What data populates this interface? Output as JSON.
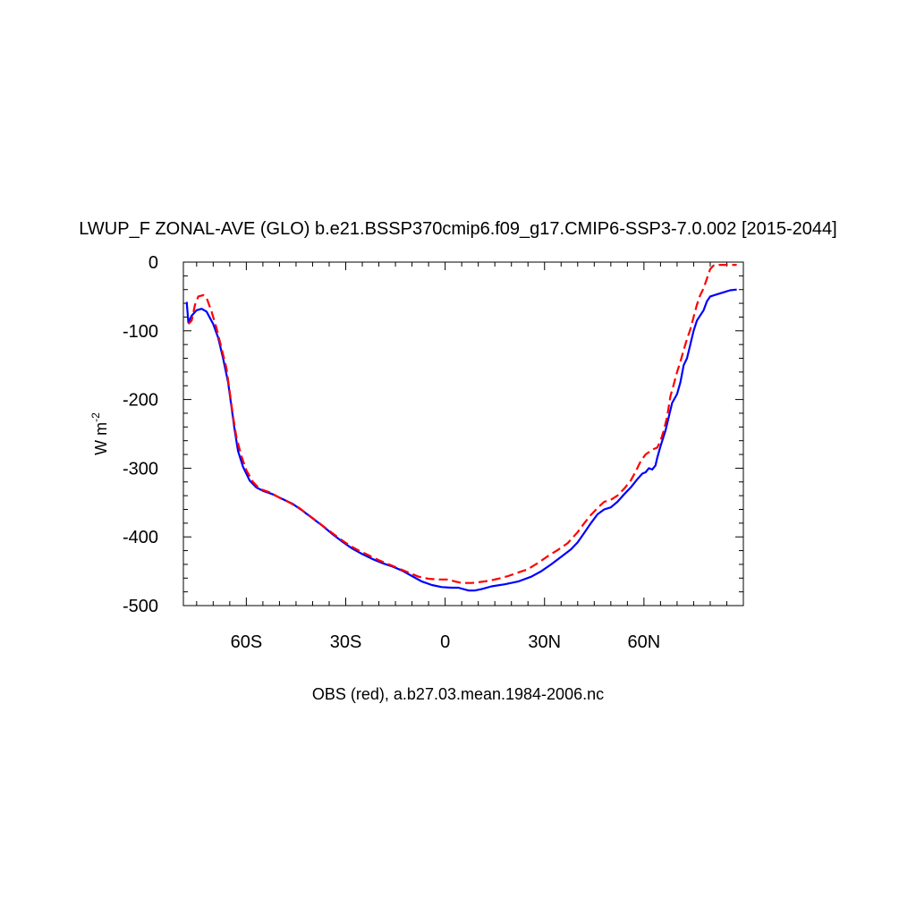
{
  "chart_data": {
    "type": "line",
    "title": "LWUP_F ZONAL-AVE (GLO) b.e21.BSSP370cmip6.f09_g17.CMIP6-SSP3-7.0.002 [2015-2044]",
    "ylabel_base": "W m",
    "ylabel_exp": "-2",
    "footer": "OBS (red), a.b27.03.mean.1984-2006.nc",
    "xlim": [
      -79,
      90
    ],
    "ylim": [
      -500,
      0
    ],
    "x_ticks": [
      {
        "value": -60,
        "label": "60S"
      },
      {
        "value": -30,
        "label": "30S"
      },
      {
        "value": 0,
        "label": "0"
      },
      {
        "value": 30,
        "label": "30N"
      },
      {
        "value": 60,
        "label": "60N"
      }
    ],
    "y_ticks": [
      {
        "value": 0,
        "label": "0"
      },
      {
        "value": -100,
        "label": "-100"
      },
      {
        "value": -200,
        "label": "-200"
      },
      {
        "value": -300,
        "label": "-300"
      },
      {
        "value": -400,
        "label": "-400"
      },
      {
        "value": -500,
        "label": "-500"
      }
    ],
    "series": [
      {
        "color": "#0000ff",
        "dash": "solid",
        "points": [
          [
            -78,
            -58
          ],
          [
            -77.5,
            -88
          ],
          [
            -76.5,
            -78
          ],
          [
            -75,
            -70
          ],
          [
            -73.5,
            -68
          ],
          [
            -72,
            -72
          ],
          [
            -70,
            -90
          ],
          [
            -68.5,
            -110
          ],
          [
            -67,
            -140
          ],
          [
            -65.5,
            -175
          ],
          [
            -64.5,
            -210
          ],
          [
            -63.5,
            -245
          ],
          [
            -62.5,
            -275
          ],
          [
            -61,
            -298
          ],
          [
            -59,
            -318
          ],
          [
            -57,
            -328
          ],
          [
            -55,
            -333
          ],
          [
            -52,
            -338
          ],
          [
            -49,
            -345
          ],
          [
            -46,
            -352
          ],
          [
            -43,
            -362
          ],
          [
            -40,
            -373
          ],
          [
            -37,
            -384
          ],
          [
            -34,
            -396
          ],
          [
            -31,
            -407
          ],
          [
            -28,
            -417
          ],
          [
            -25,
            -425
          ],
          [
            -22,
            -432
          ],
          [
            -19,
            -438
          ],
          [
            -16,
            -443
          ],
          [
            -13,
            -449
          ],
          [
            -10,
            -457
          ],
          [
            -7,
            -465
          ],
          [
            -4,
            -470
          ],
          [
            -1,
            -473
          ],
          [
            2,
            -474
          ],
          [
            4,
            -474
          ],
          [
            7,
            -478
          ],
          [
            9,
            -478
          ],
          [
            11,
            -476
          ],
          [
            14,
            -472
          ],
          [
            18,
            -469
          ],
          [
            22,
            -465
          ],
          [
            26,
            -458
          ],
          [
            29,
            -450
          ],
          [
            32,
            -440
          ],
          [
            35,
            -429
          ],
          [
            38,
            -418
          ],
          [
            40,
            -408
          ],
          [
            42,
            -394
          ],
          [
            44,
            -380
          ],
          [
            46,
            -367
          ],
          [
            48,
            -360
          ],
          [
            50,
            -357
          ],
          [
            52,
            -349
          ],
          [
            54,
            -338
          ],
          [
            56,
            -328
          ],
          [
            58,
            -316
          ],
          [
            59.5,
            -308
          ],
          [
            60.5,
            -306
          ],
          [
            61.5,
            -300
          ],
          [
            62.5,
            -302
          ],
          [
            63.5,
            -296
          ],
          [
            64,
            -285
          ],
          [
            65,
            -268
          ],
          [
            66.5,
            -245
          ],
          [
            67.5,
            -225
          ],
          [
            68.5,
            -205
          ],
          [
            70,
            -192
          ],
          [
            71,
            -175
          ],
          [
            72,
            -150
          ],
          [
            73,
            -140
          ],
          [
            74,
            -120
          ],
          [
            75,
            -100
          ],
          [
            76,
            -85
          ],
          [
            78,
            -70
          ],
          [
            79,
            -57
          ],
          [
            80,
            -50
          ],
          [
            82,
            -47
          ],
          [
            84,
            -44
          ],
          [
            86,
            -41
          ],
          [
            88,
            -40
          ]
        ]
      },
      {
        "color": "#ff0000",
        "dash": "dashed",
        "points": [
          [
            -77.5,
            -90
          ],
          [
            -76.5,
            -85
          ],
          [
            -75.5,
            -62
          ],
          [
            -74.5,
            -50
          ],
          [
            -73,
            -48
          ],
          [
            -72,
            -52
          ],
          [
            -70.5,
            -72
          ],
          [
            -69,
            -96
          ],
          [
            -67.5,
            -125
          ],
          [
            -66,
            -155
          ],
          [
            -65,
            -190
          ],
          [
            -64,
            -225
          ],
          [
            -63,
            -255
          ],
          [
            -61.5,
            -282
          ],
          [
            -60,
            -303
          ],
          [
            -58,
            -320
          ],
          [
            -56,
            -330
          ],
          [
            -53,
            -335
          ],
          [
            -50,
            -343
          ],
          [
            -47,
            -350
          ],
          [
            -44,
            -358
          ],
          [
            -41,
            -369
          ],
          [
            -38,
            -380
          ],
          [
            -35,
            -391
          ],
          [
            -32,
            -402
          ],
          [
            -29,
            -412
          ],
          [
            -26,
            -420
          ],
          [
            -23,
            -427
          ],
          [
            -20,
            -434
          ],
          [
            -17,
            -440
          ],
          [
            -14,
            -446
          ],
          [
            -11,
            -452
          ],
          [
            -8,
            -458
          ],
          [
            -5,
            -461
          ],
          [
            -2,
            -462
          ],
          [
            1,
            -462
          ],
          [
            3,
            -465
          ],
          [
            5,
            -467
          ],
          [
            8,
            -467
          ],
          [
            10,
            -466
          ],
          [
            13,
            -464
          ],
          [
            16,
            -461
          ],
          [
            19,
            -457
          ],
          [
            22,
            -452
          ],
          [
            25,
            -447
          ],
          [
            28,
            -438
          ],
          [
            31,
            -428
          ],
          [
            34,
            -419
          ],
          [
            37,
            -409
          ],
          [
            40,
            -393
          ],
          [
            42,
            -380
          ],
          [
            44,
            -368
          ],
          [
            46,
            -358
          ],
          [
            48,
            -349
          ],
          [
            50,
            -346
          ],
          [
            52,
            -340
          ],
          [
            54,
            -330
          ],
          [
            56,
            -318
          ],
          [
            57.5,
            -305
          ],
          [
            59,
            -290
          ],
          [
            60.5,
            -280
          ],
          [
            62,
            -275
          ],
          [
            63,
            -272
          ],
          [
            64,
            -270
          ],
          [
            65,
            -260
          ],
          [
            66,
            -245
          ],
          [
            67,
            -225
          ],
          [
            68,
            -195
          ],
          [
            69,
            -178
          ],
          [
            70,
            -160
          ],
          [
            71,
            -145
          ],
          [
            72,
            -128
          ],
          [
            73,
            -112
          ],
          [
            74,
            -98
          ],
          [
            75,
            -80
          ],
          [
            76,
            -62
          ],
          [
            77,
            -48
          ],
          [
            78,
            -38
          ],
          [
            79,
            -24
          ],
          [
            80,
            -10
          ],
          [
            81,
            -5
          ],
          [
            82,
            -4
          ],
          [
            84,
            -4
          ],
          [
            86,
            -4
          ],
          [
            88,
            -4
          ]
        ]
      }
    ]
  }
}
